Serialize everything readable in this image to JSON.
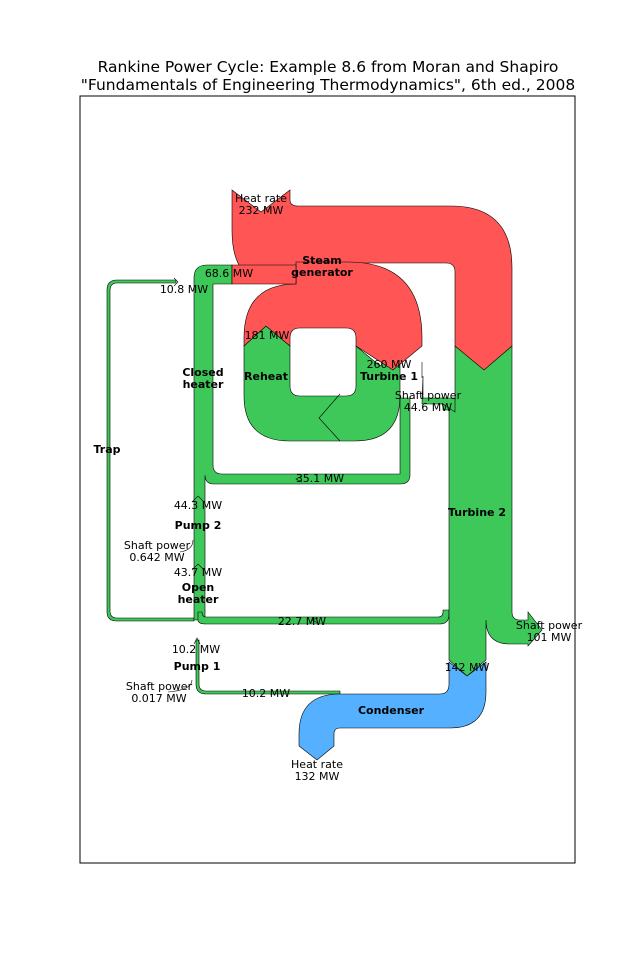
{
  "diagram": {
    "title_line1": "Rankine Power Cycle: Example 8.6 from Moran and Shapiro",
    "title_line2": "\"Fundamentals of Engineering Thermodynamics\", 6th ed., 2008",
    "components": {
      "steam_generator_l1": "Steam",
      "steam_generator_l2": "generator",
      "turbine1": "Turbine 1",
      "turbine2": "Turbine 2",
      "reheat": "Reheat",
      "closed_heater_l1": "Closed",
      "closed_heater_l2": "heater",
      "open_heater_l1": "Open",
      "open_heater_l2": "heater",
      "pump1": "Pump 1",
      "pump2": "Pump 2",
      "condenser": "Condenser",
      "trap": "Trap"
    },
    "flows": {
      "heat_in_l1": "Heat rate",
      "heat_in_l2": "232 MW",
      "f_68_6": "68.6 MW",
      "f_10_8": "10.8 MW",
      "f_181": "181 MW",
      "f_260": "260 MW",
      "shaft1_l1": "Shaft power",
      "shaft1_l2": "44.6 MW",
      "f_35_1": "35.1 MW",
      "f_44_3": "44.3 MW",
      "shaft_p2_l1": "Shaft power",
      "shaft_p2_l2": "0.642 MW",
      "f_43_7": "43.7 MW",
      "f_22_7": "22.7 MW",
      "f_10_2a": "10.2 MW",
      "shaft_p1_l1": "Shaft power",
      "shaft_p1_l2": "0.017 MW",
      "f_10_2b": "10.2 MW",
      "f_142": "142 MW",
      "shaft2_l1": "Shaft power",
      "shaft2_l2": "101 MW",
      "heat_out_l1": "Heat rate",
      "heat_out_l2": "132 MW"
    },
    "colors": {
      "heat": "#ff5555",
      "work": "#3ec85a",
      "reject": "#55b0ff"
    }
  }
}
